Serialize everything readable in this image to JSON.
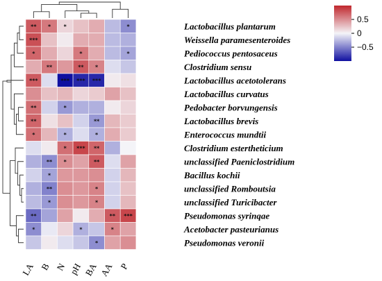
{
  "chart_data": {
    "type": "heatmap",
    "columns": [
      "LA",
      "B",
      "N",
      "pH",
      "BA",
      "AA",
      "P"
    ],
    "rows": [
      "Lactobacillus plantarum",
      "Weissella paramesenteroides",
      "Pediococcus pentosaceus",
      "Clostridium sensu",
      "Lactobacillus acetotolerans",
      "Lactobacillus curvatus",
      "Pedobacter borvungensis",
      "Lactobacillus brevis",
      "Enterococcus mundtii",
      "Clostridium esterthe­ticium",
      "unclassified Paeniclostridium",
      "Bacillus kochii",
      "unclassified Romboutsia",
      "unclassified Turicibacter",
      "Pseudomonas syrinqae",
      "Acetobacter pasteurianus",
      "Pseudomonas veronii"
    ],
    "values": [
      [
        0.75,
        0.6,
        0.15,
        0.25,
        0.35,
        -0.25,
        -0.45
      ],
      [
        0.8,
        0.25,
        0.05,
        0.35,
        0.35,
        -0.25,
        -0.3
      ],
      [
        0.7,
        0.35,
        0.15,
        0.6,
        0.35,
        -0.25,
        -0.35
      ],
      [
        0.35,
        0.6,
        0.45,
        0.75,
        0.55,
        -0.1,
        -0.2
      ],
      [
        0.75,
        -0.1,
        -1.0,
        -0.9,
        -0.9,
        0.05,
        0.1
      ],
      [
        0.5,
        0.25,
        0.3,
        0.15,
        0.2,
        0.4,
        0.25
      ],
      [
        0.65,
        -0.15,
        -0.4,
        -0.3,
        -0.3,
        0.05,
        0.15
      ],
      [
        0.7,
        0.1,
        0.25,
        -0.15,
        -0.4,
        0.3,
        0.2
      ],
      [
        0.65,
        0.3,
        -0.3,
        -0.1,
        -0.3,
        0.35,
        0.2
      ],
      [
        -0.1,
        0.05,
        0.65,
        0.85,
        0.7,
        -0.3,
        0.0
      ],
      [
        -0.3,
        -0.45,
        0.5,
        0.4,
        0.75,
        -0.1,
        0.4
      ],
      [
        -0.15,
        -0.35,
        0.45,
        0.45,
        0.5,
        -0.15,
        0.3
      ],
      [
        -0.3,
        -0.5,
        0.5,
        0.45,
        0.55,
        -0.15,
        0.25
      ],
      [
        -0.25,
        -0.4,
        0.5,
        0.45,
        0.55,
        -0.15,
        0.3
      ],
      [
        -0.6,
        -0.35,
        0.4,
        0.05,
        0.35,
        0.75,
        0.85
      ],
      [
        -0.45,
        -0.05,
        0.15,
        -0.3,
        -0.2,
        0.55,
        0.4
      ],
      [
        -0.2,
        0.05,
        -0.1,
        -0.2,
        -0.45,
        0.4,
        0.5
      ]
    ],
    "significance": [
      [
        "**",
        "*",
        "*",
        "",
        "",
        "",
        "*"
      ],
      [
        "***",
        "",
        "",
        "",
        "",
        "",
        ""
      ],
      [
        "*",
        "",
        "",
        "*",
        "",
        "",
        "*"
      ],
      [
        "",
        "**",
        "",
        "**",
        "*",
        "",
        ""
      ],
      [
        "***",
        "",
        "***",
        "***",
        "***",
        "",
        ""
      ],
      [
        "",
        "",
        "",
        "",
        "",
        "",
        ""
      ],
      [
        "**",
        "",
        "*",
        "",
        "",
        "",
        ""
      ],
      [
        "**",
        "",
        "",
        "",
        "**",
        "",
        ""
      ],
      [
        "*",
        "",
        "*",
        "",
        "*",
        "",
        ""
      ],
      [
        "",
        "",
        "*",
        "***",
        "**",
        "",
        ""
      ],
      [
        "",
        "**",
        "*",
        "",
        "**",
        "",
        ""
      ],
      [
        "",
        "*",
        "",
        "",
        "",
        "",
        ""
      ],
      [
        "",
        "**",
        "",
        "",
        "*",
        "",
        ""
      ],
      [
        "",
        "*",
        "",
        "",
        "*",
        "",
        ""
      ],
      [
        "**",
        "",
        "",
        "",
        "",
        "**",
        "***"
      ],
      [
        "*",
        "",
        "",
        "*",
        "",
        "*",
        ""
      ],
      [
        "",
        "",
        "",
        "",
        "*",
        "",
        ""
      ]
    ],
    "color_scale": {
      "min": -1,
      "max": 1,
      "low_color": "#1010a0",
      "mid_color": "#f4f4f8",
      "high_color": "#c0272d",
      "ticks": [
        {
          "value": 0.5,
          "label": "0.5"
        },
        {
          "value": 0,
          "label": "0"
        },
        {
          "value": -0.5,
          "label": "−0.5"
        }
      ]
    },
    "col_dendrogram": [
      {
        "children": [
          0,
          1
        ],
        "height": 0.4
      },
      {
        "children": [
          3,
          4
        ],
        "height": 0.3
      },
      {
        "children": [
          2,
          "n1"
        ],
        "height": 0.45
      },
      {
        "children": [
          "n0",
          "n2"
        ],
        "height": 0.85
      },
      {
        "children": [
          5,
          6
        ],
        "height": 0.55
      },
      {
        "children": [
          "n3",
          "n4"
        ],
        "height": 1.0
      }
    ],
    "row_dendrogram": [
      {
        "children": [
          0,
          1
        ],
        "height": 0.2
      },
      {
        "children": [
          2,
          "n0"
        ],
        "height": 0.3
      },
      {
        "children": [
          3,
          "n1"
        ],
        "height": 0.45
      },
      {
        "children": [
          6,
          7
        ],
        "height": 0.25
      },
      {
        "children": [
          8,
          "n3"
        ],
        "height": 0.35
      },
      {
        "children": [
          5,
          "n4"
        ],
        "height": 0.45
      },
      {
        "children": [
          "n2",
          "n5"
        ],
        "height": 0.6
      },
      {
        "children": [
          4,
          "n6"
        ],
        "height": 0.8
      },
      {
        "children": [
          12,
          13
        ],
        "height": 0.1
      },
      {
        "children": [
          11,
          "n8"
        ],
        "height": 0.18
      },
      {
        "children": [
          10,
          "n9"
        ],
        "height": 0.28
      },
      {
        "children": [
          9,
          "n10"
        ],
        "height": 0.4
      },
      {
        "children": [
          15,
          16
        ],
        "height": 0.25
      },
      {
        "children": [
          14,
          "n12"
        ],
        "height": 0.35
      },
      {
        "children": [
          "n11",
          "n13"
        ],
        "height": 0.65
      },
      {
        "children": [
          "n7",
          "n14"
        ],
        "height": 1.0
      }
    ],
    "grid": true,
    "legend": "colorbar top-right"
  }
}
